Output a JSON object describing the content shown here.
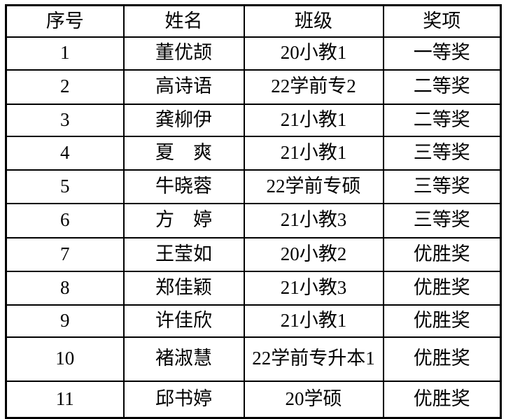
{
  "page": {
    "background": "#ffffff"
  },
  "table": {
    "columns": [
      "序号",
      "姓名",
      "班级",
      "奖项"
    ],
    "rows": [
      {
        "no": "1",
        "name": "董优颉",
        "class": "20小教1",
        "award": "一等奖"
      },
      {
        "no": "2",
        "name": "高诗语",
        "class": "22学前专2",
        "award": "二等奖"
      },
      {
        "no": "3",
        "name": "龚柳伊",
        "class": "21小教1",
        "award": "二等奖"
      },
      {
        "no": "4",
        "name": "夏　爽",
        "class": "21小教1",
        "award": "三等奖"
      },
      {
        "no": "5",
        "name": "牛晓蓉",
        "class": "22学前专硕",
        "award": "三等奖"
      },
      {
        "no": "6",
        "name": "方　婷",
        "class": "21小教3",
        "award": "三等奖"
      },
      {
        "no": "7",
        "name": "王莹如",
        "class": "20小教2",
        "award": "优胜奖"
      },
      {
        "no": "8",
        "name": "郑佳颖",
        "class": "21小教3",
        "award": "优胜奖"
      },
      {
        "no": "9",
        "name": "许佳欣",
        "class": "21小教1",
        "award": "优胜奖"
      },
      {
        "no": "10",
        "name": "褚淑慧",
        "class": "22学前专升本1",
        "award": "优胜奖"
      },
      {
        "no": "11",
        "name": "邱书婷",
        "class": "20学硕",
        "award": "优胜奖"
      }
    ],
    "style": {
      "border_color": "#000000",
      "text_color": "#000000"
    }
  }
}
